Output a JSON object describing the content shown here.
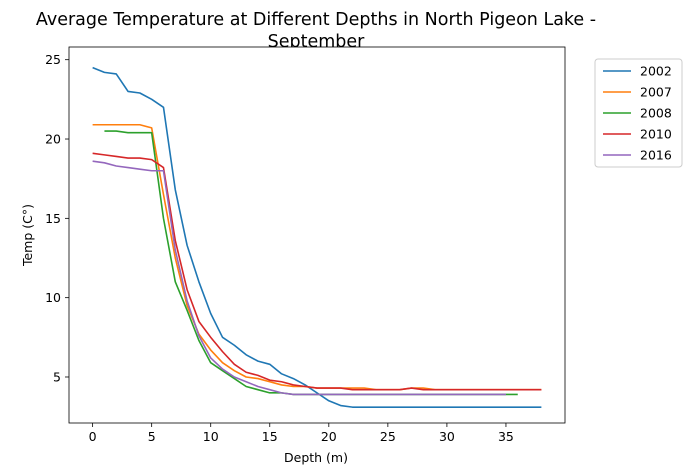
{
  "chart_data": {
    "type": "line",
    "title_line1": "Average Temperature at Different Depths in North Pigeon Lake -",
    "title_line2": "September",
    "xlabel": "Depth (m)",
    "ylabel": "Temp (C°)",
    "xlim": [
      -2,
      40
    ],
    "ylim": [
      2.1,
      25.8
    ],
    "xticks": [
      0,
      5,
      10,
      15,
      20,
      25,
      30,
      35
    ],
    "yticks": [
      5,
      10,
      15,
      20,
      25
    ],
    "grid": false,
    "legend_position": "outside-top-right",
    "series": [
      {
        "name": "2002",
        "color": "#1f77b4",
        "x": [
          0,
          1,
          2,
          3,
          4,
          5,
          6,
          7,
          8,
          9,
          10,
          11,
          12,
          13,
          14,
          15,
          16,
          17,
          18,
          19,
          20,
          21,
          22,
          23,
          24,
          25,
          26,
          27,
          28,
          29,
          30,
          31,
          32,
          33,
          34,
          35,
          36,
          37,
          38
        ],
        "y": [
          24.5,
          24.2,
          24.1,
          23.0,
          22.9,
          22.5,
          22.0,
          16.8,
          13.3,
          11.0,
          9.0,
          7.5,
          7.0,
          6.4,
          6.0,
          5.8,
          5.2,
          4.9,
          4.5,
          4.0,
          3.5,
          3.2,
          3.1,
          3.1,
          3.1,
          3.1,
          3.1,
          3.1,
          3.1,
          3.1,
          3.1,
          3.1,
          3.1,
          3.1,
          3.1,
          3.1,
          3.1,
          3.1,
          3.1
        ]
      },
      {
        "name": "2007",
        "color": "#ff7f0e",
        "x": [
          0,
          1,
          2,
          3,
          4,
          5,
          6,
          7,
          8,
          9,
          10,
          11,
          12,
          13,
          14,
          15,
          16,
          17,
          18,
          19,
          20,
          21,
          22,
          23,
          24,
          25,
          26,
          27,
          28,
          29,
          30,
          31,
          32,
          33,
          34,
          35,
          36,
          37,
          38
        ],
        "y": [
          20.9,
          20.9,
          20.9,
          20.9,
          20.9,
          20.7,
          16.5,
          12.5,
          9.5,
          7.7,
          6.7,
          5.9,
          5.4,
          5.0,
          4.9,
          4.7,
          4.5,
          4.4,
          4.4,
          4.3,
          4.3,
          4.3,
          4.3,
          4.3,
          4.2,
          4.2,
          4.2,
          4.3,
          4.3,
          4.2,
          4.2,
          4.2,
          4.2,
          4.2,
          4.2,
          4.2,
          4.2,
          4.2,
          4.2
        ]
      },
      {
        "name": "2008",
        "color": "#2ca02c",
        "x": [
          1,
          2,
          3,
          4,
          5,
          6,
          7,
          8,
          9,
          10,
          11,
          12,
          13,
          14,
          15,
          16,
          17,
          18,
          19,
          20,
          21,
          22,
          23,
          24,
          25,
          26,
          27,
          28,
          29,
          30,
          31,
          32,
          33,
          34,
          35,
          36
        ],
        "y": [
          20.5,
          20.5,
          20.4,
          20.4,
          20.4,
          15.0,
          11.0,
          9.2,
          7.3,
          5.9,
          5.4,
          4.9,
          4.4,
          4.2,
          4.0,
          4.0,
          3.9,
          3.9,
          3.9,
          3.9,
          3.9,
          3.9,
          3.9,
          3.9,
          3.9,
          3.9,
          3.9,
          3.9,
          3.9,
          3.9,
          3.9,
          3.9,
          3.9,
          3.9,
          3.9,
          3.9
        ]
      },
      {
        "name": "2010",
        "color": "#d62728",
        "x": [
          0,
          1,
          2,
          3,
          4,
          5,
          6,
          7,
          8,
          9,
          10,
          11,
          12,
          13,
          14,
          15,
          16,
          17,
          18,
          19,
          20,
          21,
          22,
          23,
          24,
          25,
          26,
          27,
          28,
          29,
          30,
          31,
          32,
          33,
          34,
          35,
          36,
          37,
          38
        ],
        "y": [
          19.1,
          19.0,
          18.9,
          18.8,
          18.8,
          18.7,
          18.2,
          13.6,
          10.5,
          8.5,
          7.5,
          6.6,
          5.8,
          5.3,
          5.1,
          4.8,
          4.7,
          4.5,
          4.4,
          4.3,
          4.3,
          4.3,
          4.2,
          4.2,
          4.2,
          4.2,
          4.2,
          4.3,
          4.2,
          4.2,
          4.2,
          4.2,
          4.2,
          4.2,
          4.2,
          4.2,
          4.2,
          4.2,
          4.2
        ]
      },
      {
        "name": "2016",
        "color": "#9467bd",
        "x": [
          0,
          1,
          2,
          3,
          4,
          5,
          6,
          7,
          8,
          9,
          10,
          11,
          12,
          13,
          14,
          15,
          16,
          17,
          18,
          19,
          20,
          21,
          22,
          23,
          24,
          25,
          26,
          27,
          28,
          29,
          30,
          31,
          32,
          33,
          34,
          35
        ],
        "y": [
          18.6,
          18.5,
          18.3,
          18.2,
          18.1,
          18.0,
          18.0,
          13.0,
          9.8,
          7.6,
          6.2,
          5.5,
          5.0,
          4.7,
          4.4,
          4.2,
          4.0,
          3.9,
          3.9,
          3.9,
          3.9,
          3.9,
          3.9,
          3.9,
          3.9,
          3.9,
          3.9,
          3.9,
          3.9,
          3.9,
          3.9,
          3.9,
          3.9,
          3.9,
          3.9,
          3.9
        ]
      }
    ]
  }
}
